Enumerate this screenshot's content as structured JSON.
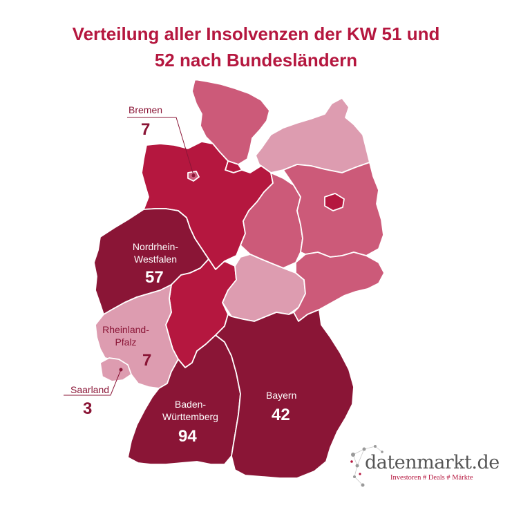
{
  "title_line1": "Verteilung aller Insolvenzen der KW 51 und",
  "title_line2": "52 nach Bundesländern",
  "colors": {
    "title": "#b5173f",
    "darkest": "#8a1536",
    "dark": "#b5173f",
    "medium": "#cc5a79",
    "light": "#dd9cb0",
    "border": "#ffffff"
  },
  "regions": {
    "bremen": {
      "label": "Bremen",
      "value": "7"
    },
    "nrw": {
      "label_line1": "Nordrhein-",
      "label_line2": "Westfalen",
      "value": "57"
    },
    "rlp": {
      "label_line1": "Rheinland-",
      "label_line2": "Pfalz",
      "value": "7"
    },
    "saarland": {
      "label": "Saarland",
      "value": "3"
    },
    "bw": {
      "label_line1": "Baden-",
      "label_line2": "Württemberg",
      "value": "94"
    },
    "bayern": {
      "label": "Bayern",
      "value": "42"
    }
  },
  "logo": {
    "wordmark": "datenmarkt.de",
    "tagline": "Investoren # Deals # Märkte",
    "icon": "network-dots-icon"
  }
}
